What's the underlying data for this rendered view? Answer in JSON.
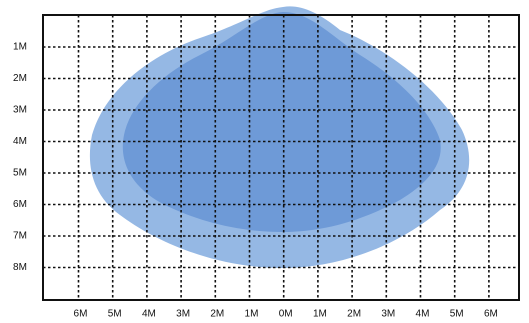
{
  "y_labels": [
    "1M",
    "2M",
    "3M",
    "4M",
    "5M",
    "6M",
    "7M",
    "8M"
  ],
  "x_labels": [
    "6M",
    "5M",
    "4M",
    "3M",
    "2M",
    "1M",
    "0M",
    "1M",
    "2M",
    "3M",
    "4M",
    "5M",
    "6M"
  ]
}
